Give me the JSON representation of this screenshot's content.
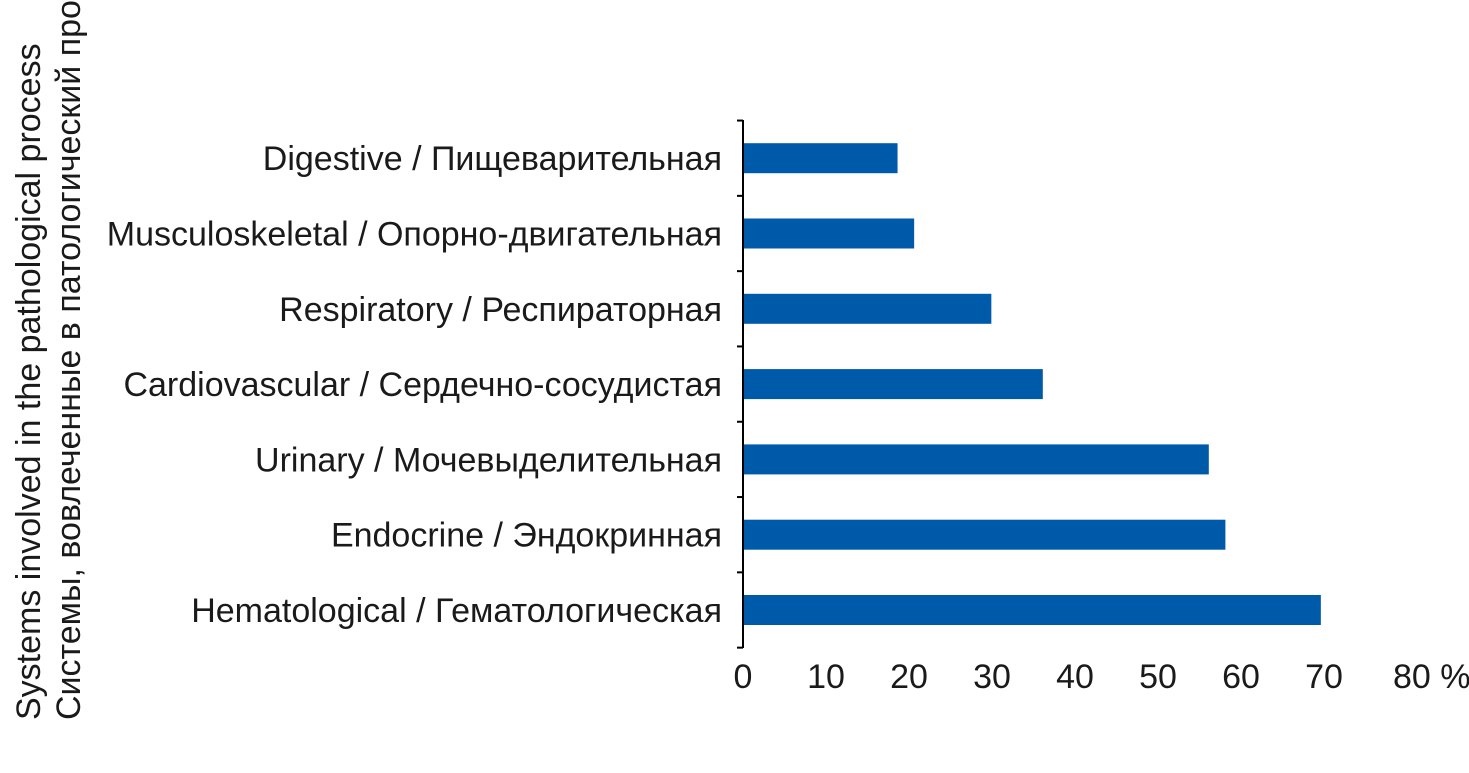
{
  "chart_data": {
    "type": "bar",
    "orientation": "horizontal",
    "categories": [
      "Hematological / Гематологическая",
      "Endocrine / Эндокринная",
      "Urinary / Мочевыделительная",
      "Cardiovascular / Сердечно-сосудистая",
      "Respiratory / Респираторная",
      "Musculoskeletal / Опорно-двигательная",
      "Digestive / Пищеварительная"
    ],
    "values": [
      69.5,
      58,
      56,
      36,
      29.8,
      20.5,
      18.5
    ],
    "xlim": [
      0,
      80
    ],
    "x_ticks": [
      "0",
      "10",
      "20",
      "30",
      "40",
      "50",
      "60",
      "70",
      "80 %"
    ],
    "ylabel_lines": [
      "Systems involved in the pathological process",
      "Системы, вовлеченные в патологический процесс"
    ],
    "bar_color": "#005aaa",
    "grid": false,
    "legend": "none"
  }
}
